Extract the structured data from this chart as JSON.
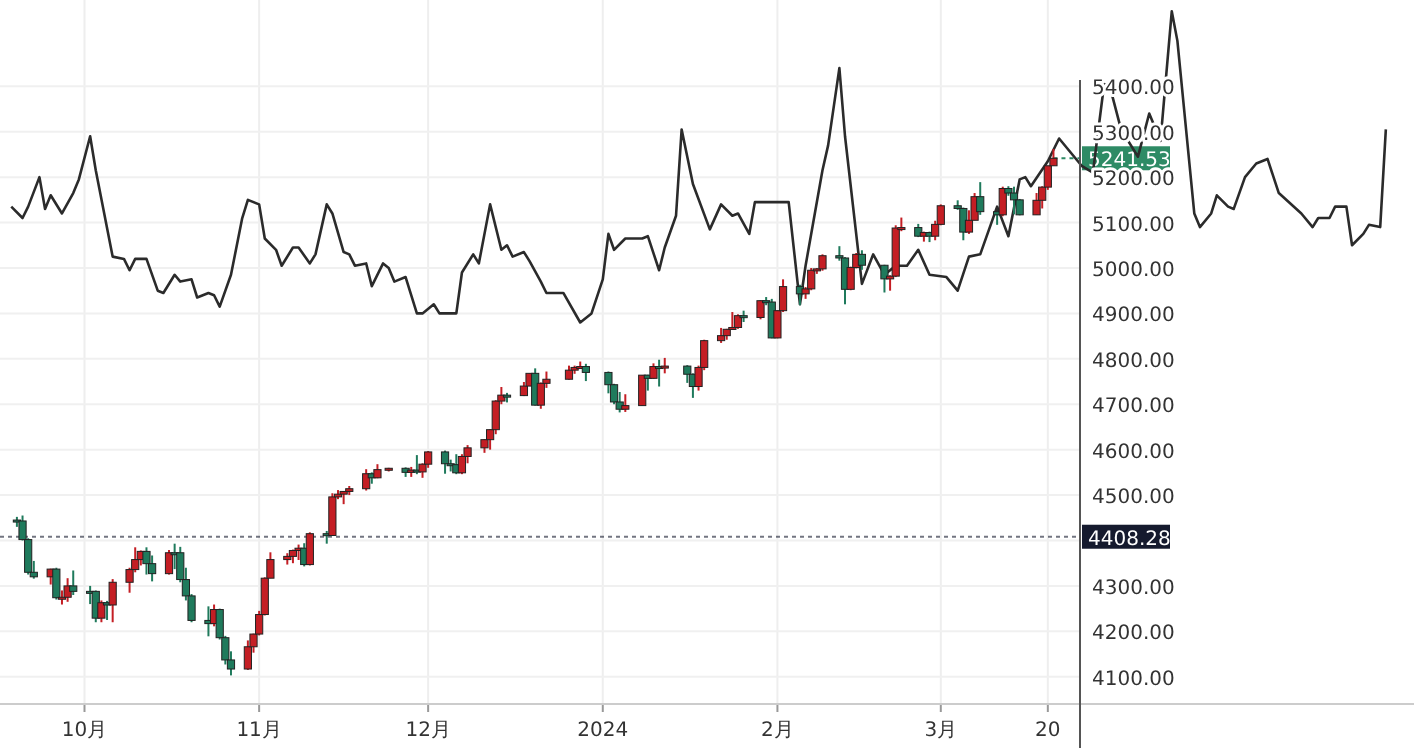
{
  "chart_data": {
    "type": "candlestick",
    "xlim": [
      "2023-09-16",
      "2024-05-24"
    ],
    "ylim": [
      4040,
      5590
    ],
    "yticks": [
      {
        "value": 4100,
        "label": "4100.00"
      },
      {
        "value": 4200,
        "label": "4200.00"
      },
      {
        "value": 4300,
        "label": "4300.00"
      },
      {
        "value": 4400,
        "label": null
      },
      {
        "value": 4500,
        "label": "4500.00"
      },
      {
        "value": 4600,
        "label": "4600.00"
      },
      {
        "value": 4700,
        "label": "4700.00"
      },
      {
        "value": 4800,
        "label": "4800.00"
      },
      {
        "value": 4900,
        "label": "4900.00"
      },
      {
        "value": 5000,
        "label": "5000.00"
      },
      {
        "value": 5100,
        "label": "5100.00"
      },
      {
        "value": 5200,
        "label": "5200.00"
      },
      {
        "value": 5300,
        "label": "5300.00"
      },
      {
        "value": 5400,
        "label": "5400.00"
      }
    ],
    "xticks": [
      {
        "value": "2023-10-01",
        "label": "10月"
      },
      {
        "value": "2023-11-01",
        "label": "11月"
      },
      {
        "value": "2023-12-01",
        "label": "12月"
      },
      {
        "value": "2024-01-01",
        "label": "2024"
      },
      {
        "value": "2024-02-01",
        "label": "2月"
      },
      {
        "value": "2024-03-01",
        "label": "3月"
      },
      {
        "value": "2024-03-20",
        "label": "20"
      }
    ],
    "grid": true,
    "series": [
      {
        "type": "candlestick",
        "colors": [
          "#1f7a5c",
          "#1f7a5c",
          "#1f7a5c",
          "#1f7a5c",
          "#c41e24",
          "#1f7a5c",
          "#c41e24",
          "#c41e24",
          "#1f7a5c",
          "#1f7a5c",
          "#1f7a5c",
          "#c41e24",
          "#1f7a5c",
          "#c41e24",
          "#c41e24",
          "#c41e24",
          "#c41e24",
          "#1f7a5c",
          "#1f7a5c",
          "#c41e24",
          "#1f7a5c",
          "#1f7a5c",
          "#1f7a5c",
          "#1f7a5c",
          "#1f7a5c",
          "#c41e24",
          "#1f7a5c",
          "#1f7a5c",
          "#1f7a5c",
          "#c41e24",
          "#c41e24",
          "#c41e24",
          "#c41e24",
          "#c41e24",
          "#c41e24",
          "#c41e24",
          "#c41e24",
          "#1f7a5c",
          "#c41e24",
          "#1f7a5c",
          "#c41e24",
          "#c41e24",
          "#c41e24",
          "#c41e24",
          "#c41e24",
          "#1f7a5c",
          "#c41e24",
          "#c41e24",
          "#1f7a5c",
          "#c41e24",
          "#1f7a5c",
          "#c41e24",
          "#c41e24",
          "#1f7a5c",
          "#1f7a5c",
          "#1f7a5c",
          "#c41e24",
          "#c41e24",
          "#c41e24",
          "#c41e24",
          "#c41e24",
          "#c41e24",
          "#1f7a5c",
          "#c41e24",
          "#c41e24",
          "#1f7a5c",
          "#c41e24",
          "#c41e24",
          "#c41e24",
          "#c41e24",
          "#c41e24",
          "#1f7a5c",
          "#1f7a5c",
          "#1f7a5c",
          "#1f7a5c",
          "#c41e24",
          "#c41e24",
          "#1f7a5c",
          "#c41e24",
          "#1f7a5c",
          "#c41e24",
          "#1f7a5c",
          "#1f7a5c",
          "#c41e24",
          "#c41e24",
          "#c41e24",
          "#c41e24",
          "#c41e24",
          "#c41e24",
          "#1f7a5c",
          "#c41e24",
          "#1f7a5c",
          "#1f7a5c",
          "#c41e24",
          "#c41e24",
          "#1f7a5c",
          "#c41e24",
          "#c41e24",
          "#c41e24",
          "#c41e24",
          "#1f7a5c",
          "#1f7a5c",
          "#c41e24",
          "#c41e24",
          "#1f7a5c",
          "#1f7a5c",
          "#c41e24",
          "#c41e24",
          "#c41e24",
          "#1f7a5c",
          "#c41e24",
          "#1f7a5c",
          "#c41e24",
          "#c41e24",
          "#1f7a5c",
          "#1f7a5c",
          "#c41e24",
          "#c41e24",
          "#1f7a5c",
          "#1f7a5c",
          "#c41e24",
          "#1f7a5c",
          "#1f7a5c",
          "#1f7a5c",
          "#c41e24",
          "#c41e24",
          "#c41e24",
          "#c41e24"
        ],
        "x": [
          "2023-09-19",
          "2023-09-20",
          "2023-09-21",
          "2023-09-22",
          "2023-09-25",
          "2023-09-26",
          "2023-09-27",
          "2023-09-28",
          "2023-09-29",
          "2023-10-02",
          "2023-10-03",
          "2023-10-04",
          "2023-10-05",
          "2023-10-06",
          "2023-10-09",
          "2023-10-10",
          "2023-10-11",
          "2023-10-12",
          "2023-10-13",
          "2023-10-16",
          "2023-10-17",
          "2023-10-18",
          "2023-10-19",
          "2023-10-20",
          "2023-10-23",
          "2023-10-24",
          "2023-10-25",
          "2023-10-26",
          "2023-10-27",
          "2023-10-30",
          "2023-10-31",
          "2023-11-01",
          "2023-11-02",
          "2023-11-03",
          "2023-11-06",
          "2023-11-07",
          "2023-11-08",
          "2023-11-09",
          "2023-11-10",
          "2023-11-13",
          "2023-11-14",
          "2023-11-15",
          "2023-11-16",
          "2023-11-17",
          "2023-11-20",
          "2023-11-21",
          "2023-11-22",
          "2023-11-24",
          "2023-11-27",
          "2023-11-28",
          "2023-11-29",
          "2023-11-30",
          "2023-12-01",
          "2023-12-04",
          "2023-12-05",
          "2023-12-06",
          "2023-12-07",
          "2023-12-08",
          "2023-12-11",
          "2023-12-12",
          "2023-12-13",
          "2023-12-14",
          "2023-12-15",
          "2023-12-18",
          "2023-12-19",
          "2023-12-20",
          "2023-12-21",
          "2023-12-22",
          "2023-12-26",
          "2023-12-27",
          "2023-12-28",
          "2023-12-29",
          "2024-01-02",
          "2024-01-03",
          "2024-01-04",
          "2024-01-05",
          "2024-01-08",
          "2024-01-09",
          "2024-01-10",
          "2024-01-11",
          "2024-01-12",
          "2024-01-16",
          "2024-01-17",
          "2024-01-18",
          "2024-01-19",
          "2024-01-22",
          "2024-01-23",
          "2024-01-24",
          "2024-01-25",
          "2024-01-26",
          "2024-01-29",
          "2024-01-30",
          "2024-01-31",
          "2024-02-01",
          "2024-02-02",
          "2024-02-05",
          "2024-02-06",
          "2024-02-07",
          "2024-02-08",
          "2024-02-09",
          "2024-02-12",
          "2024-02-13",
          "2024-02-14",
          "2024-02-15",
          "2024-02-16",
          "2024-02-20",
          "2024-02-21",
          "2024-02-22",
          "2024-02-23",
          "2024-02-26",
          "2024-02-27",
          "2024-02-28",
          "2024-02-29",
          "2024-03-01",
          "2024-03-04",
          "2024-03-05",
          "2024-03-06",
          "2024-03-07",
          "2024-03-08",
          "2024-03-11",
          "2024-03-12",
          "2024-03-13",
          "2024-03-14",
          "2024-03-15",
          "2024-03-18",
          "2024-03-19",
          "2024-03-20",
          "2024-03-21"
        ],
        "ohlc": [
          [
            4445,
            4452,
            4430,
            4443
          ],
          [
            4443,
            4455,
            4400,
            4402
          ],
          [
            4402,
            4405,
            4325,
            4330
          ],
          [
            4330,
            4355,
            4316,
            4320
          ],
          [
            4320,
            4338,
            4303,
            4337
          ],
          [
            4337,
            4340,
            4270,
            4274
          ],
          [
            4274,
            4290,
            4259,
            4275
          ],
          [
            4275,
            4317,
            4265,
            4300
          ],
          [
            4300,
            4334,
            4280,
            4288
          ],
          [
            4288,
            4300,
            4260,
            4288
          ],
          [
            4288,
            4290,
            4220,
            4229
          ],
          [
            4229,
            4268,
            4220,
            4263
          ],
          [
            4263,
            4267,
            4225,
            4258
          ],
          [
            4258,
            4315,
            4220,
            4308
          ],
          [
            4308,
            4340,
            4285,
            4336
          ],
          [
            4336,
            4385,
            4330,
            4358
          ],
          [
            4358,
            4378,
            4345,
            4376
          ],
          [
            4376,
            4385,
            4325,
            4349
          ],
          [
            4349,
            4367,
            4310,
            4327
          ],
          [
            4327,
            4379,
            4325,
            4373
          ],
          [
            4373,
            4393,
            4337,
            4373
          ],
          [
            4373,
            4386,
            4308,
            4314
          ],
          [
            4314,
            4340,
            4268,
            4278
          ],
          [
            4278,
            4282,
            4220,
            4224
          ],
          [
            4224,
            4255,
            4189,
            4217
          ],
          [
            4217,
            4259,
            4211,
            4248
          ],
          [
            4248,
            4250,
            4182,
            4186
          ],
          [
            4186,
            4190,
            4127,
            4137
          ],
          [
            4137,
            4156,
            4103,
            4117
          ],
          [
            4117,
            4180,
            4115,
            4166
          ],
          [
            4166,
            4195,
            4153,
            4194
          ],
          [
            4194,
            4245,
            4191,
            4237
          ],
          [
            4237,
            4319,
            4235,
            4317
          ],
          [
            4317,
            4374,
            4317,
            4358
          ],
          [
            4358,
            4372,
            4347,
            4365
          ],
          [
            4365,
            4380,
            4350,
            4378
          ],
          [
            4378,
            4391,
            4357,
            4383
          ],
          [
            4383,
            4394,
            4343,
            4347
          ],
          [
            4347,
            4418,
            4345,
            4415
          ],
          [
            4415,
            4421,
            4393,
            4411
          ],
          [
            4411,
            4504,
            4411,
            4496
          ],
          [
            4496,
            4511,
            4491,
            4502
          ],
          [
            4502,
            4509,
            4480,
            4508
          ],
          [
            4508,
            4520,
            4500,
            4514
          ],
          [
            4514,
            4557,
            4510,
            4547
          ],
          [
            4547,
            4550,
            4525,
            4538
          ],
          [
            4538,
            4568,
            4537,
            4556
          ],
          [
            4556,
            4560,
            4552,
            4559
          ],
          [
            4559,
            4561,
            4540,
            4550
          ],
          [
            4550,
            4562,
            4540,
            4555
          ],
          [
            4555,
            4588,
            4546,
            4551
          ],
          [
            4551,
            4570,
            4538,
            4568
          ],
          [
            4568,
            4597,
            4560,
            4595
          ],
          [
            4595,
            4598,
            4547,
            4569
          ],
          [
            4569,
            4578,
            4552,
            4567
          ],
          [
            4567,
            4590,
            4546,
            4549
          ],
          [
            4549,
            4590,
            4546,
            4585
          ],
          [
            4585,
            4610,
            4570,
            4604
          ],
          [
            4604,
            4623,
            4593,
            4622
          ],
          [
            4622,
            4645,
            4600,
            4644
          ],
          [
            4644,
            4709,
            4634,
            4707
          ],
          [
            4707,
            4738,
            4700,
            4720
          ],
          [
            4720,
            4725,
            4704,
            4719
          ],
          [
            4719,
            4749,
            4718,
            4740
          ],
          [
            4740,
            4768,
            4740,
            4768
          ],
          [
            4768,
            4779,
            4697,
            4698
          ],
          [
            4698,
            4748,
            4690,
            4746
          ],
          [
            4746,
            4772,
            4736,
            4755
          ],
          [
            4755,
            4785,
            4754,
            4775
          ],
          [
            4775,
            4785,
            4767,
            4781
          ],
          [
            4781,
            4794,
            4780,
            4783
          ],
          [
            4783,
            4789,
            4751,
            4770
          ],
          [
            4770,
            4772,
            4724,
            4743
          ],
          [
            4743,
            4745,
            4700,
            4705
          ],
          [
            4705,
            4727,
            4682,
            4689
          ],
          [
            4689,
            4722,
            4683,
            4697
          ],
          [
            4697,
            4764,
            4697,
            4764
          ],
          [
            4764,
            4765,
            4730,
            4757
          ],
          [
            4757,
            4790,
            4756,
            4783
          ],
          [
            4783,
            4798,
            4739,
            4780
          ],
          [
            4780,
            4802,
            4768,
            4784
          ],
          [
            4784,
            4786,
            4747,
            4766
          ],
          [
            4766,
            4768,
            4714,
            4739
          ],
          [
            4739,
            4785,
            4730,
            4781
          ],
          [
            4781,
            4842,
            4775,
            4840
          ],
          [
            4840,
            4868,
            4835,
            4851
          ],
          [
            4851,
            4866,
            4842,
            4865
          ],
          [
            4865,
            4903,
            4865,
            4869
          ],
          [
            4869,
            4898,
            4866,
            4895
          ],
          [
            4895,
            4906,
            4881,
            4891
          ],
          [
            4891,
            4929,
            4887,
            4928
          ],
          [
            4928,
            4936,
            4918,
            4925
          ],
          [
            4925,
            4932,
            4845,
            4846
          ],
          [
            4846,
            4907,
            4845,
            4906
          ],
          [
            4906,
            4975,
            4903,
            4959
          ],
          [
            4959,
            4963,
            4918,
            4943
          ],
          [
            4943,
            4958,
            4932,
            4954
          ],
          [
            4954,
            5000,
            4951,
            4995
          ],
          [
            4995,
            5000,
            4987,
            4998
          ],
          [
            4998,
            5030,
            4994,
            5027
          ],
          [
            5027,
            5048,
            5016,
            5022
          ],
          [
            5022,
            5024,
            4920,
            4953
          ],
          [
            4953,
            5003,
            4951,
            5001
          ],
          [
            5001,
            5033,
            4999,
            5030
          ],
          [
            5030,
            5039,
            4996,
            5006
          ],
          [
            5006,
            5007,
            4946,
            4976
          ],
          [
            4976,
            4984,
            4950,
            4982
          ],
          [
            4982,
            5094,
            4980,
            5088
          ],
          [
            5088,
            5111,
            5081,
            5089
          ],
          [
            5089,
            5097,
            5068,
            5070
          ],
          [
            5070,
            5080,
            5058,
            5078
          ],
          [
            5078,
            5080,
            5057,
            5070
          ],
          [
            5070,
            5104,
            5061,
            5096
          ],
          [
            5096,
            5140,
            5094,
            5137
          ],
          [
            5137,
            5149,
            5128,
            5131
          ],
          [
            5131,
            5133,
            5061,
            5079
          ],
          [
            5079,
            5127,
            5075,
            5105
          ],
          [
            5105,
            5165,
            5105,
            5157
          ],
          [
            5157,
            5189,
            5117,
            5124
          ],
          [
            5124,
            5125,
            5095,
            5117
          ],
          [
            5117,
            5179,
            5114,
            5175
          ],
          [
            5175,
            5180,
            5159,
            5165
          ],
          [
            5165,
            5179,
            5118,
            5150
          ],
          [
            5150,
            5152,
            5116,
            5117
          ],
          [
            5117,
            5165,
            5117,
            5149
          ],
          [
            5149,
            5180,
            5131,
            5178
          ],
          [
            5178,
            5225,
            5172,
            5225
          ],
          [
            5225,
            5262,
            5225,
            5241.53
          ]
        ]
      },
      {
        "type": "line",
        "color": "#2b2b2b",
        "x": [
          "2023-09-18",
          "2023-09-20",
          "2023-09-21",
          "2023-09-23",
          "2023-09-24",
          "2023-09-25",
          "2023-09-27",
          "2023-09-29",
          "2023-09-30",
          "2023-10-02",
          "2023-10-03",
          "2023-10-06",
          "2023-10-08",
          "2023-10-09",
          "2023-10-10",
          "2023-10-12",
          "2023-10-14",
          "2023-10-15",
          "2023-10-17",
          "2023-10-18",
          "2023-10-20",
          "2023-10-21",
          "2023-10-23",
          "2023-10-24",
          "2023-10-25",
          "2023-10-27",
          "2023-10-29",
          "2023-10-30",
          "2023-11-01",
          "2023-11-02",
          "2023-11-04",
          "2023-11-05",
          "2023-11-07",
          "2023-11-08",
          "2023-11-10",
          "2023-11-11",
          "2023-11-13",
          "2023-11-14",
          "2023-11-16",
          "2023-11-17",
          "2023-11-18",
          "2023-11-20",
          "2023-11-21",
          "2023-11-23",
          "2023-11-24",
          "2023-11-25",
          "2023-11-27",
          "2023-11-29",
          "2023-11-30",
          "2023-12-02",
          "2023-12-03",
          "2023-12-05",
          "2023-12-06",
          "2023-12-07",
          "2023-12-09",
          "2023-12-10",
          "2023-12-12",
          "2023-12-14",
          "2023-12-15",
          "2023-12-16",
          "2023-12-18",
          "2023-12-19",
          "2023-12-21",
          "2023-12-22",
          "2023-12-25",
          "2023-12-28",
          "2023-12-30",
          "2024-01-01",
          "2024-01-02",
          "2024-01-03",
          "2024-01-05",
          "2024-01-08",
          "2024-01-09",
          "2024-01-11",
          "2024-01-12",
          "2024-01-14",
          "2024-01-15",
          "2024-01-17",
          "2024-01-20",
          "2024-01-22",
          "2024-01-24",
          "2024-01-25",
          "2024-01-27",
          "2024-01-28",
          "2024-02-03",
          "2024-02-05",
          "2024-02-06",
          "2024-02-09",
          "2024-02-10",
          "2024-02-12",
          "2024-02-13",
          "2024-02-16",
          "2024-02-18",
          "2024-02-20",
          "2024-02-22",
          "2024-02-24",
          "2024-02-26",
          "2024-02-28",
          "2024-03-02",
          "2024-03-04",
          "2024-03-06",
          "2024-03-08",
          "2024-03-11",
          "2024-03-13",
          "2024-03-15",
          "2024-03-16",
          "2024-03-17",
          "2024-03-20",
          "2024-03-22",
          "2024-03-26",
          "2024-03-28",
          "2024-03-30",
          "2024-03-31",
          "2024-04-02",
          "2024-04-05",
          "2024-04-07",
          "2024-04-09",
          "2024-04-11",
          "2024-04-12",
          "2024-04-15",
          "2024-04-16",
          "2024-04-18",
          "2024-04-19",
          "2024-04-21",
          "2024-04-22",
          "2024-04-24",
          "2024-04-26",
          "2024-04-28",
          "2024-04-30",
          "2024-05-04",
          "2024-05-06",
          "2024-05-07",
          "2024-05-09",
          "2024-05-10",
          "2024-05-12",
          "2024-05-13",
          "2024-05-15",
          "2024-05-16",
          "2024-05-18",
          "2024-05-19"
        ],
        "values": [
          5135,
          5110,
          5135,
          5200,
          5130,
          5160,
          5120,
          5165,
          5195,
          5290,
          5215,
          5025,
          5020,
          4995,
          5020,
          5020,
          4950,
          4945,
          4985,
          4970,
          4975,
          4935,
          4945,
          4940,
          4915,
          4985,
          5110,
          5150,
          5140,
          5065,
          5040,
          5005,
          5045,
          5045,
          5010,
          5030,
          5140,
          5120,
          5035,
          5030,
          5005,
          5010,
          4960,
          5010,
          5000,
          4970,
          4980,
          4900,
          4900,
          4920,
          4900,
          4900,
          4900,
          4990,
          5030,
          5010,
          5140,
          5040,
          5050,
          5025,
          5035,
          5015,
          4970,
          4945,
          4945,
          4880,
          4900,
          4975,
          5075,
          5040,
          5065,
          5065,
          5070,
          4995,
          5045,
          5115,
          5305,
          5185,
          5085,
          5140,
          5115,
          5120,
          5075,
          5145,
          5145,
          4920,
          5005,
          5215,
          5270,
          5440,
          5290,
          4965,
          5030,
          4985,
          5005,
          5005,
          5040,
          4985,
          4980,
          4950,
          5025,
          5030,
          5135,
          5070,
          5195,
          5200,
          5180,
          5235,
          5285,
          5225,
          5210,
          5405,
          5400,
          5305,
          5245,
          5340,
          5280,
          5565,
          5500,
          5120,
          5090,
          5120,
          5160,
          5135,
          5130,
          5200,
          5230,
          5240,
          5165,
          5120,
          5090,
          5110,
          5110,
          5135,
          5135,
          5050,
          5075,
          5095,
          5090,
          5305
        ]
      }
    ],
    "ref_lines": [
      {
        "axis": "y",
        "value": 4408.28,
        "label": "4408.28",
        "color": "#151a2e",
        "line_style": "dotted"
      }
    ],
    "annotations": [
      {
        "text": "5241.53",
        "x": "2024-03-21",
        "y": 5241.53
      }
    ]
  }
}
